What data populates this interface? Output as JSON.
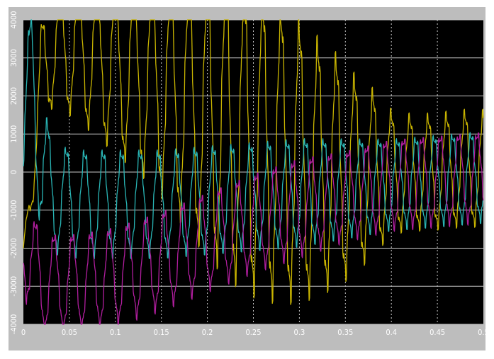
{
  "chart_data": {
    "type": "line",
    "title": "",
    "xlabel": "",
    "ylabel": "",
    "xlim": [
      0,
      0.5
    ],
    "ylim": [
      -4000,
      4000
    ],
    "grid": true,
    "legend": "none",
    "background": "#000000",
    "grid_color": "#c8c8c8",
    "x_ticks": [
      0,
      0.05,
      0.1,
      0.15,
      0.2,
      0.25,
      0.3,
      0.35,
      0.4,
      0.45,
      0.5
    ],
    "x_tick_labels": [
      "0",
      "0.05",
      "0.1",
      "0.15",
      "0.2",
      "0.25",
      "0.3",
      "0.35",
      "0.4",
      "0.45",
      "0.5"
    ],
    "y_ticks": [
      -4000,
      -3000,
      -2000,
      -1000,
      0,
      1000,
      2000,
      3000,
      4000
    ],
    "y_tick_labels": [
      "-4000",
      "-3000",
      "-2000",
      "-1000",
      "0",
      "1000",
      "2000",
      "3000",
      "4000"
    ],
    "series": [
      {
        "color": "#c8b400",
        "description": "yellow phase current",
        "x": [
          0,
          0.01,
          0.02,
          0.03,
          0.04,
          0.05,
          0.06,
          0.07,
          0.08,
          0.09,
          0.1,
          0.12,
          0.14,
          0.16,
          0.18,
          0.2,
          0.22,
          0.24,
          0.26,
          0.28,
          0.3,
          0.32,
          0.34,
          0.36,
          0.38,
          0.4,
          0.42,
          0.44,
          0.46,
          0.48,
          0.5
        ],
        "center": [
          -2000,
          0,
          2500,
          3200,
          3300,
          3250,
          3200,
          3100,
          3000,
          2900,
          2800,
          2600,
          2400,
          2100,
          1800,
          1500,
          1200,
          900,
          700,
          500,
          300,
          150,
          50,
          -50,
          0,
          0,
          0,
          0,
          50,
          100,
          100
        ],
        "amplitude": [
          0,
          800,
          1400,
          1400,
          1500,
          1600,
          1700,
          1800,
          1900,
          2000,
          2100,
          2300,
          2500,
          2800,
          3100,
          3400,
          3600,
          3700,
          3700,
          3600,
          3400,
          3100,
          2800,
          2400,
          2000,
          1500,
          1400,
          1400,
          1400,
          1400,
          1400
        ],
        "frequency_hz": 50,
        "phase_deg": 90
      },
      {
        "color": "#29b5b5",
        "description": "cyan phase current",
        "x": [
          0,
          0.01,
          0.02,
          0.03,
          0.04,
          0.05,
          0.06,
          0.08,
          0.1,
          0.15,
          0.2,
          0.25,
          0.3,
          0.35,
          0.4,
          0.45,
          0.5
        ],
        "center": [
          1000,
          2500,
          200,
          -600,
          -700,
          -750,
          -800,
          -800,
          -800,
          -800,
          -700,
          -600,
          -500,
          -400,
          -300,
          -200,
          -100
        ],
        "amplitude": [
          1500,
          2000,
          1800,
          1400,
          1300,
          1300,
          1300,
          1300,
          1300,
          1300,
          1300,
          1300,
          1300,
          1200,
          1100,
          1100,
          1100
        ],
        "frequency_hz": 50,
        "phase_deg": -30
      },
      {
        "color": "#b01e9e",
        "description": "magenta phase current",
        "x": [
          0,
          0.01,
          0.02,
          0.03,
          0.05,
          0.08,
          0.1,
          0.15,
          0.2,
          0.25,
          0.3,
          0.35,
          0.4,
          0.45,
          0.5
        ],
        "center": [
          -1500,
          -2500,
          -2900,
          -2900,
          -2900,
          -2800,
          -2700,
          -2300,
          -1800,
          -1300,
          -900,
          -600,
          -300,
          -200,
          -100
        ],
        "amplitude": [
          1500,
          1300,
          1200,
          1200,
          1200,
          1200,
          1200,
          1200,
          1200,
          1200,
          1200,
          1100,
          1100,
          1100,
          1100
        ],
        "frequency_hz": 50,
        "phase_deg": 210
      }
    ]
  }
}
